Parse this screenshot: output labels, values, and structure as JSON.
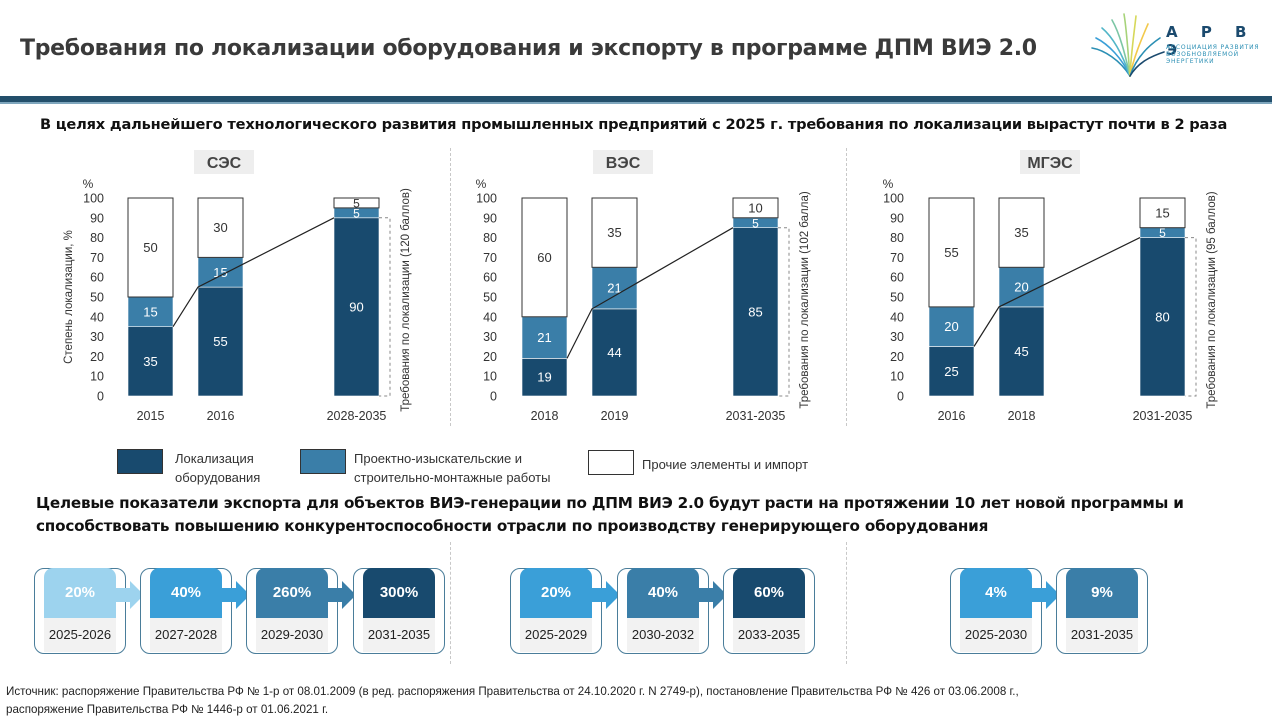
{
  "header": {
    "title": "Требования по локализации оборудования и экспорту в программе ДПМ ВИЭ 2.0",
    "logo_text": "А Р В Э",
    "logo_sub_1": "АССОЦИАЦИЯ РАЗВИТИЯ",
    "logo_sub_2": "ВОЗОБНОВЛЯЕМОЙ ЭНЕРГЕТИКИ"
  },
  "subtitle": "В целях дальнейшего технологического развития промышленных предприятий с 2025 г. требования по локализации вырастут почти в 2 раза",
  "colors": {
    "localization": "#184a6e",
    "design_works": "#3a7ea8",
    "other": "#ffffff",
    "band": "#234f6b"
  },
  "chart_data": [
    {
      "type": "bar",
      "stacked": true,
      "title": "СЭС",
      "unit": "%",
      "ylabel": "Степень локализации, %",
      "ylim": [
        0,
        100
      ],
      "yticks": [
        0,
        10,
        20,
        30,
        40,
        50,
        60,
        70,
        80,
        90,
        100
      ],
      "categories": [
        "2015",
        "2016",
        "2028-2035"
      ],
      "requirement_label": "Требования по локализации (120 баллов)",
      "series": [
        {
          "name": "Локализация оборудования",
          "values": [
            35,
            55,
            90
          ]
        },
        {
          "name": "Проектно-изыскательские и строительно-монтажные работы",
          "values": [
            15,
            15,
            5
          ]
        },
        {
          "name": "Прочие элементы и импорт",
          "values": [
            50,
            30,
            5
          ]
        }
      ]
    },
    {
      "type": "bar",
      "stacked": true,
      "title": "ВЭС",
      "unit": "%",
      "ylabel": "",
      "ylim": [
        0,
        100
      ],
      "yticks": [
        0,
        10,
        20,
        30,
        40,
        50,
        60,
        70,
        80,
        90,
        100
      ],
      "categories": [
        "2018",
        "2019",
        "2031-2035"
      ],
      "requirement_label": "Требования по локализации (102 балла)",
      "series": [
        {
          "name": "Локализация оборудования",
          "values": [
            19,
            44,
            85
          ]
        },
        {
          "name": "Проектно-изыскательские и строительно-монтажные работы",
          "values": [
            21,
            21,
            5
          ]
        },
        {
          "name": "Прочие элементы и импорт",
          "values": [
            60,
            35,
            10
          ]
        }
      ]
    },
    {
      "type": "bar",
      "stacked": true,
      "title": "МГЭС",
      "unit": "%",
      "ylabel": "",
      "ylim": [
        0,
        100
      ],
      "yticks": [
        0,
        10,
        20,
        30,
        40,
        50,
        60,
        70,
        80,
        90,
        100
      ],
      "categories": [
        "2016",
        "2018",
        "2031-2035"
      ],
      "requirement_label": "Требования по локализации (95 баллов)",
      "series": [
        {
          "name": "Локализация оборудования",
          "values": [
            25,
            45,
            80
          ]
        },
        {
          "name": "Проектно-изыскательские и строительно-монтажные работы",
          "values": [
            20,
            20,
            5
          ]
        },
        {
          "name": "Прочие элементы и импорт",
          "values": [
            55,
            35,
            15
          ]
        }
      ]
    }
  ],
  "legend": [
    {
      "label": "Локализация\nоборудования",
      "color": "#184a6e"
    },
    {
      "label": "Проектно-изыскательские и\nстроительно-монтажные работы",
      "color": "#3a7ea8"
    },
    {
      "label": "Прочие элементы и импорт",
      "color": "#ffffff"
    }
  ],
  "export_title": "Целевые показатели экспорта для объектов ВИЭ-генерации по ДПМ ВИЭ 2.0 будут расти на протяжении 10 лет новой программы и способствовать повышению конкурентоспособности отрасли по производству генерирующего оборудования",
  "export_groups": [
    {
      "name": "ses",
      "steps": [
        {
          "value": "20%",
          "period": "2025-2026",
          "color": "#9dd3ee"
        },
        {
          "value": "40%",
          "period": "2027-2028",
          "color": "#3a9fd8"
        },
        {
          "value": "260%",
          "period": "2029-2030",
          "color": "#3a7ea8"
        },
        {
          "value": "300%",
          "period": "2031-2035",
          "color": "#184a6e"
        }
      ]
    },
    {
      "name": "ves",
      "steps": [
        {
          "value": "20%",
          "period": "2025-2029",
          "color": "#3a9fd8"
        },
        {
          "value": "40%",
          "period": "2030-2032",
          "color": "#3a7ea8"
        },
        {
          "value": "60%",
          "period": "2033-2035",
          "color": "#184a6e"
        }
      ]
    },
    {
      "name": "mges",
      "steps": [
        {
          "value": "4%",
          "period": "2025-2030",
          "color": "#3a9fd8"
        },
        {
          "value": "9%",
          "period": "2031-2035",
          "color": "#3a7ea8"
        }
      ]
    }
  ],
  "footer": {
    "line1": "Источник: распоряжение Правительства РФ № 1-р от 08.01.2009 (в ред. распоряжения Правительства от 24.10.2020 г. N 2749-р), постановление Правительства РФ № 426 от 03.06.2008 г.,",
    "line2": "распоряжение Правительства РФ № 1446-р от 01.06.2021 г."
  }
}
